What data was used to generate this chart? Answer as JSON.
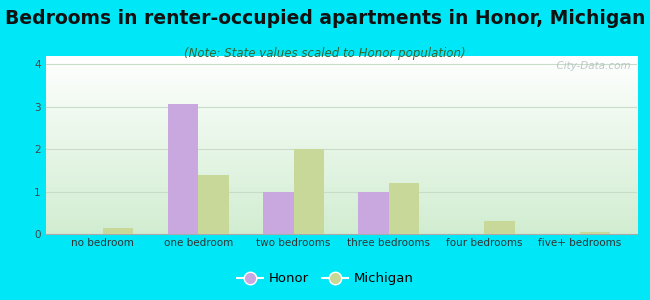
{
  "title": "Bedrooms in renter-occupied apartments in Honor, Michigan",
  "subtitle": "(Note: State values scaled to Honor population)",
  "categories": [
    "no bedroom",
    "one bedroom",
    "two bedrooms",
    "three bedrooms",
    "four bedrooms",
    "five+ bedrooms"
  ],
  "honor_values": [
    0.0,
    3.05,
    1.0,
    1.0,
    0.0,
    0.0
  ],
  "michigan_values": [
    0.15,
    1.4,
    2.0,
    1.2,
    0.3,
    0.05
  ],
  "honor_color": "#c9a8e0",
  "michigan_color": "#c8d898",
  "background_outer": "#00e8f8",
  "ylim": [
    0,
    4.2
  ],
  "yticks": [
    0,
    1,
    2,
    3,
    4
  ],
  "grid_color": "#c8ddc8",
  "title_fontsize": 13.5,
  "subtitle_fontsize": 8.5,
  "tick_fontsize": 7.5,
  "legend_fontsize": 9.5,
  "bar_width": 0.32,
  "watermark": "  City-Data.com"
}
